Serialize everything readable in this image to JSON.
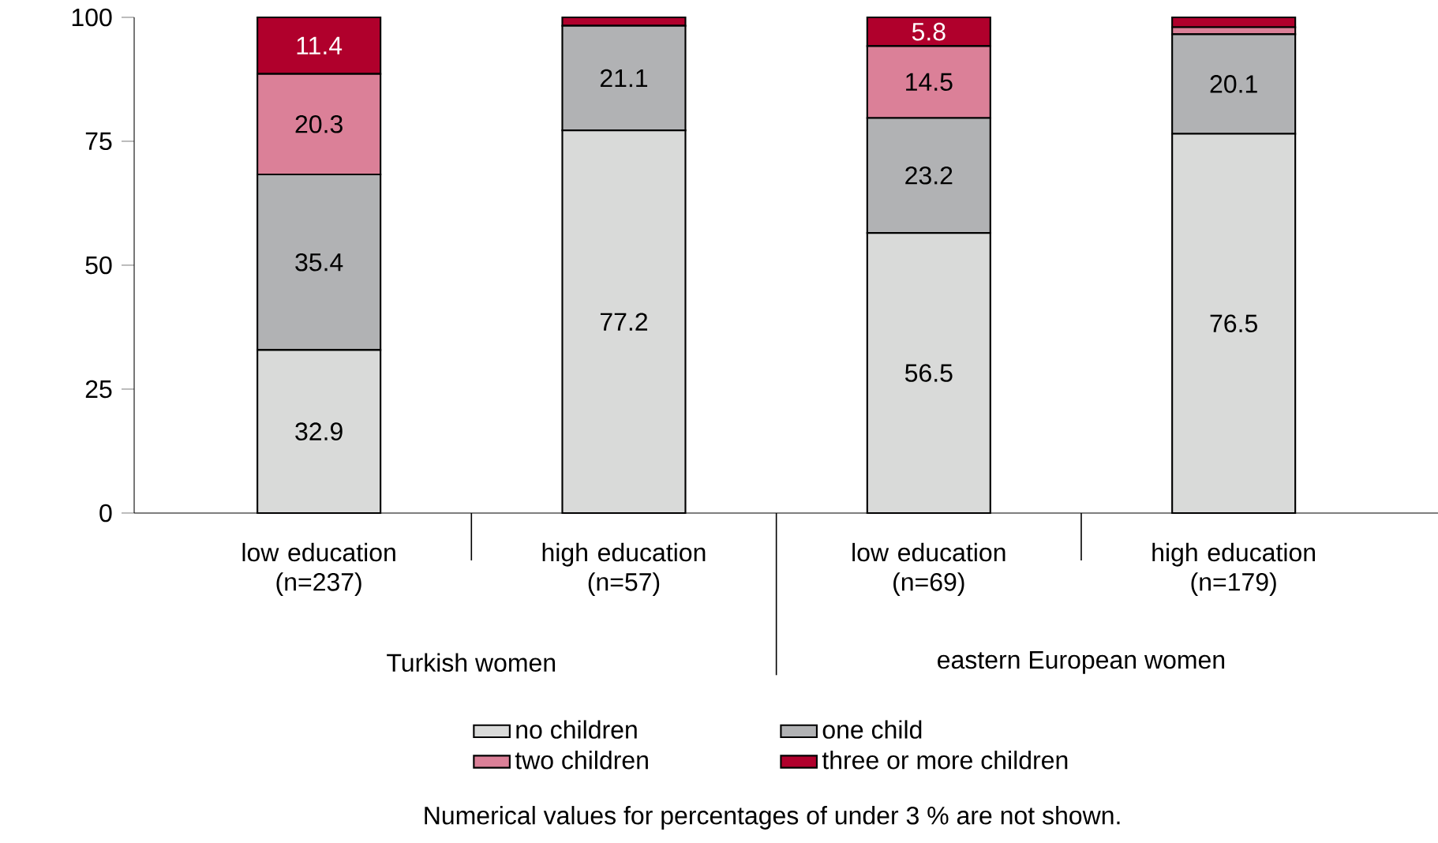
{
  "chart_data": {
    "type": "bar",
    "stacked": true,
    "categories": [
      "low education (n=237)",
      "high education (n=57)",
      "low education (n=69)",
      "high education (n=179)"
    ],
    "series": [
      {
        "name": "no children",
        "color": "#d9dad9",
        "values": [
          32.9,
          77.2,
          56.5,
          76.5
        ],
        "value_labels": [
          "32.9",
          "77.2",
          "56.5",
          "76.5"
        ]
      },
      {
        "name": "one child",
        "color": "#b1b2b4",
        "values": [
          35.4,
          21.1,
          23.2,
          20.1
        ],
        "value_labels": [
          "35.4",
          "21.1",
          "23.2",
          "20.1"
        ]
      },
      {
        "name": "two children",
        "color": "#db8098",
        "values": [
          20.3,
          0,
          14.5,
          1.4
        ],
        "value_labels": [
          "20.3",
          null,
          "14.5",
          null
        ]
      },
      {
        "name": "three or more children",
        "color": "#b0002c",
        "values": [
          11.4,
          1.7,
          5.8,
          2.0
        ],
        "value_labels": [
          "11.4",
          null,
          "5.8",
          null
        ]
      }
    ],
    "ylim": [
      0,
      100
    ],
    "yticks": [
      0,
      25,
      50,
      75,
      100
    ],
    "grid": false,
    "legend": "bottom",
    "annotations": [
      "Turkish women",
      "eastern European women",
      "Numerical values for percentages of under 3 % are not shown."
    ]
  }
}
